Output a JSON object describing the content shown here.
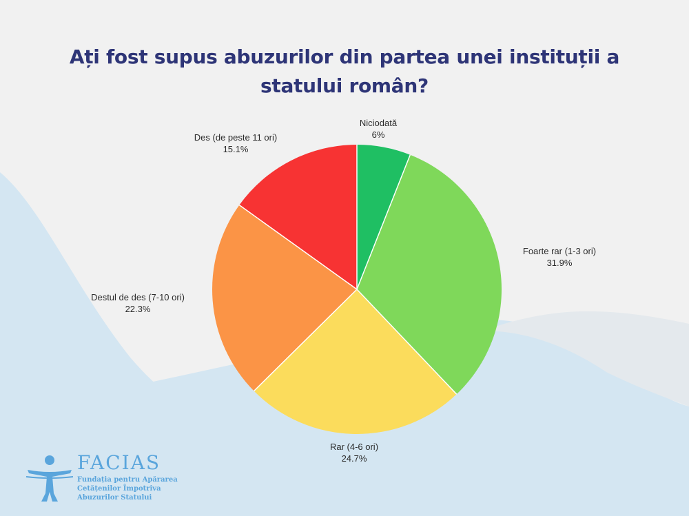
{
  "title": "Ați fost supus abuzurilor din partea unei instituții a statului român?",
  "colors": {
    "background": "#f1f1f1",
    "wave": "#d4e6f2",
    "title": "#2e3577",
    "logo": "#5aa5dc"
  },
  "chart_data": {
    "type": "pie",
    "title": "Ați fost supus abuzurilor din partea unei instituții a statului român?",
    "start_angle_deg": 0,
    "direction": "clockwise",
    "slices": [
      {
        "label": "Niciodată",
        "value": 6.0,
        "value_label": "6%",
        "color": "#1fbf63"
      },
      {
        "label": "Foarte rar (1-3 ori)",
        "value": 31.9,
        "value_label": "31.9%",
        "color": "#7fd85a"
      },
      {
        "label": "Rar (4-6 ori)",
        "value": 24.7,
        "value_label": "24.7%",
        "color": "#fbdc5c"
      },
      {
        "label": "Destul de des (7-10 ori)",
        "value": 22.3,
        "value_label": "22.3%",
        "color": "#fb9446"
      },
      {
        "label": "Des (de peste 11 ori)",
        "value": 15.1,
        "value_label": "15.1%",
        "color": "#f73333"
      }
    ]
  },
  "logo": {
    "name": "FACIAS",
    "subtitle_lines": [
      "Fundația pentru Apărarea",
      "Cetățenilor Împotriva",
      "Abuzurilor Statului"
    ],
    "icon": "person-figure-icon"
  }
}
